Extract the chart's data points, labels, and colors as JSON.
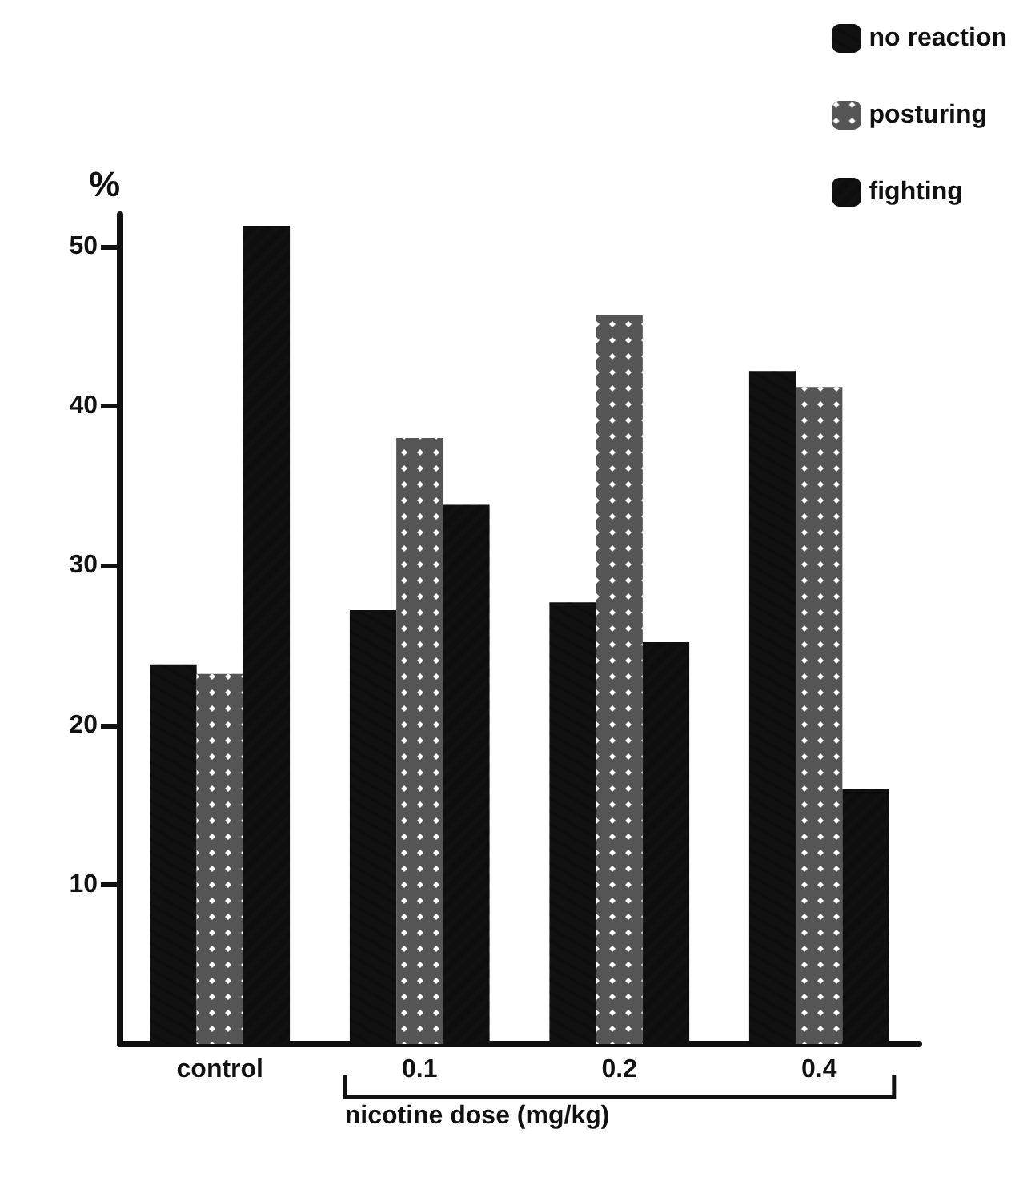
{
  "chart_data": {
    "type": "bar",
    "categories": [
      "control",
      "0.1",
      "0.2",
      "0.4"
    ],
    "series": [
      {
        "name": "no reaction",
        "color": "#111111",
        "values": [
          23.8,
          27.2,
          27.7,
          42.2
        ]
      },
      {
        "name": "posturing",
        "color": "#555555",
        "values": [
          23.2,
          38.0,
          45.7,
          41.2
        ]
      },
      {
        "name": "fighting",
        "color": "#111111",
        "values": [
          51.3,
          33.8,
          25.2,
          16.0
        ]
      }
    ],
    "ylabel": "%",
    "xlabel": "nicotine dose (mg/kg)",
    "ylim": [
      0,
      52
    ],
    "yticks": [
      10,
      20,
      30,
      40,
      50
    ],
    "grid": false,
    "legend": "top right"
  }
}
